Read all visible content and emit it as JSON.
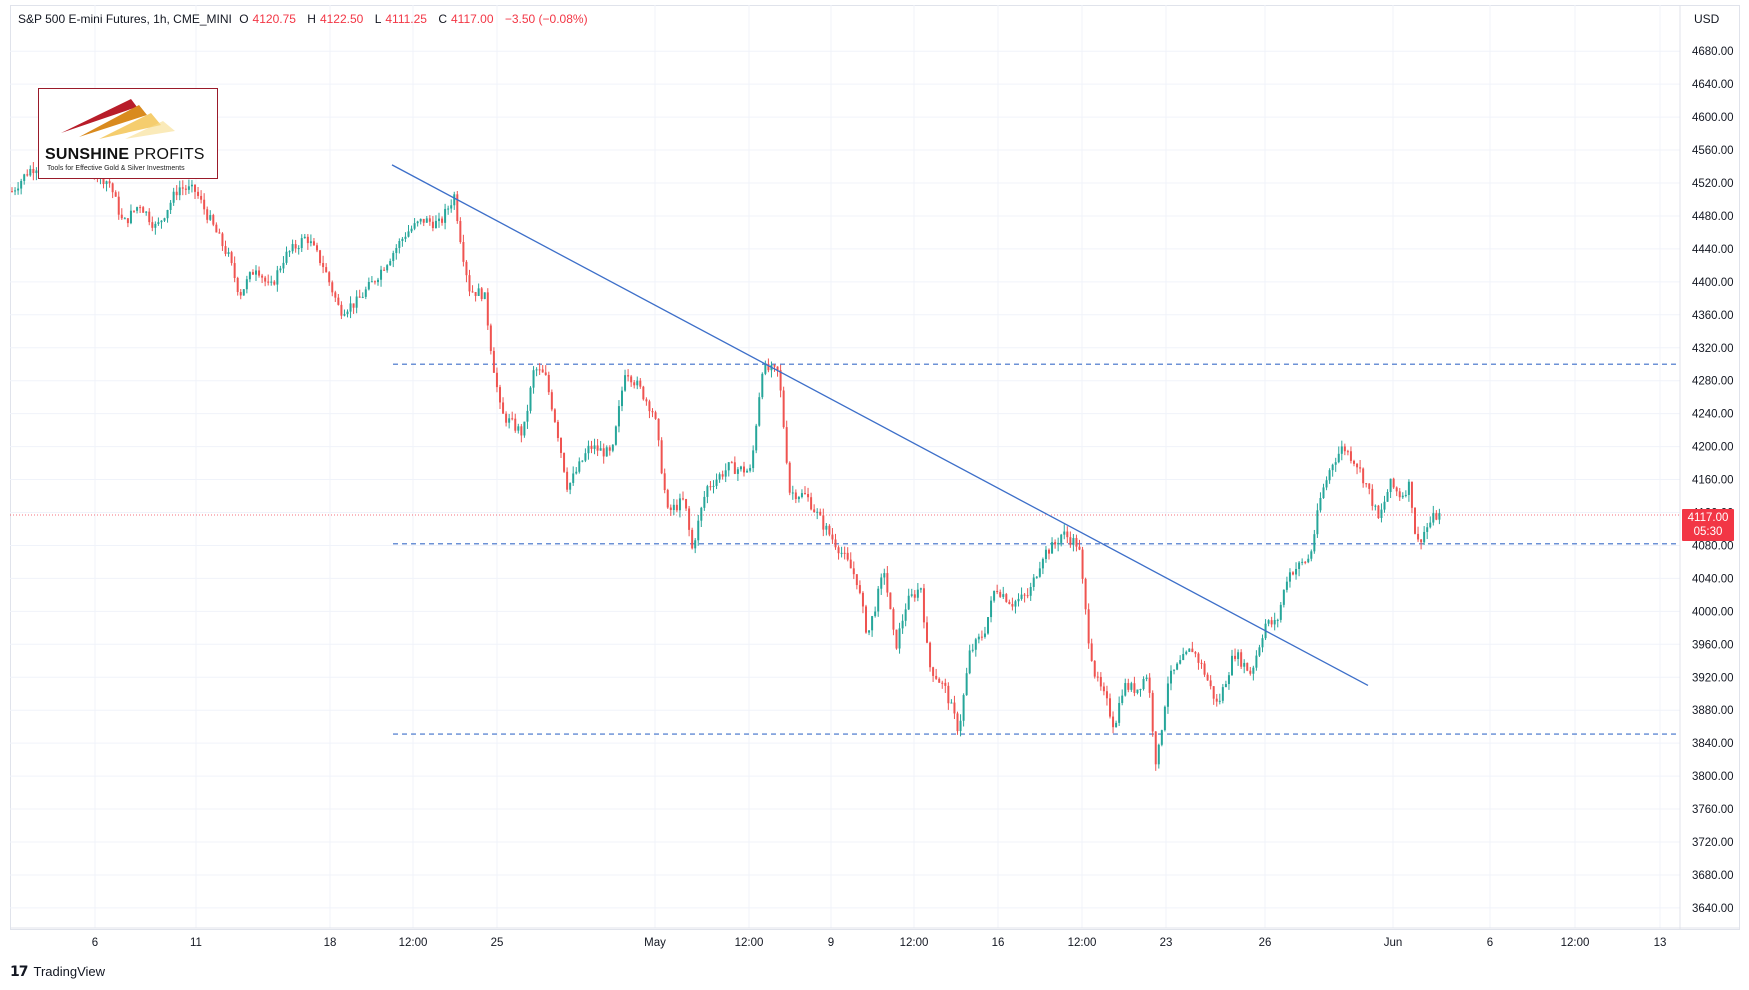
{
  "header": {
    "symbol": "S&P 500 E-mini Futures, 1h, CME_MINI",
    "open_label": "O",
    "open": "4120.75",
    "high_label": "H",
    "high": "4122.50",
    "low_label": "L",
    "low": "4111.25",
    "close_label": "C",
    "close": "4117.00",
    "change": "−3.50 (−0.08%)"
  },
  "currency": "USD",
  "last_price": {
    "value": "4117.00",
    "countdown": "05:30"
  },
  "logo": {
    "brand_bold": "SUNSHINE",
    "brand_thin": " PROFITS",
    "tagline": "Tools for Effective Gold & Silver Investments"
  },
  "footer": {
    "icon": "tradingview-icon",
    "label": "TradingView"
  },
  "colors": {
    "up": "#26a69a",
    "down": "#ef5350",
    "trendline": "#3d6fc9",
    "level": "#3d6fc9",
    "badge": "#f23645"
  },
  "chart_data": {
    "type": "candlestick",
    "y_ticks": [
      3640,
      3680,
      3720,
      3760,
      3800,
      3840,
      3880,
      3920,
      3960,
      4000,
      4040,
      4080,
      4120,
      4160,
      4200,
      4240,
      4280,
      4320,
      4360,
      4400,
      4440,
      4480,
      4520,
      4560,
      4600,
      4640,
      4680
    ],
    "y_tick_labels": [
      "3640.00",
      "3680.00",
      "3720.00",
      "3760.00",
      "3800.00",
      "3840.00",
      "3880.00",
      "3920.00",
      "3960.00",
      "4000.00",
      "4040.00",
      "4080.00",
      "4120.00",
      "4160.00",
      "4200.00",
      "4240.00",
      "4280.00",
      "4320.00",
      "4360.00",
      "4400.00",
      "4440.00",
      "4480.00",
      "4520.00",
      "4560.00",
      "4600.00",
      "4640.00",
      "4680.00"
    ],
    "ylim": [
      3620,
      4700
    ],
    "x_tick_labels": [
      "6",
      "11",
      "18",
      "12:00",
      "25",
      "May",
      "12:00",
      "9",
      "12:00",
      "16",
      "12:00",
      "23",
      "26",
      "Jun",
      "6",
      "12:00",
      "13"
    ],
    "horizontal_levels": [
      4300,
      4082,
      3851
    ],
    "trendline": {
      "from_price": 4542,
      "to_price": 3910
    },
    "price_path": [
      [
        0,
        4510
      ],
      [
        15,
        4535
      ],
      [
        40,
        4555
      ],
      [
        70,
        4538
      ],
      [
        88,
        4520
      ],
      [
        100,
        4470
      ],
      [
        115,
        4495
      ],
      [
        130,
        4465
      ],
      [
        150,
        4515
      ],
      [
        165,
        4510
      ],
      [
        180,
        4470
      ],
      [
        195,
        4430
      ],
      [
        205,
        4385
      ],
      [
        220,
        4420
      ],
      [
        232,
        4390
      ],
      [
        245,
        4430
      ],
      [
        265,
        4455
      ],
      [
        280,
        4420
      ],
      [
        295,
        4365
      ],
      [
        310,
        4375
      ],
      [
        325,
        4400
      ],
      [
        340,
        4430
      ],
      [
        355,
        4460
      ],
      [
        370,
        4475
      ],
      [
        385,
        4470
      ],
      [
        398,
        4505
      ],
      [
        405,
        4440
      ],
      [
        412,
        4390
      ],
      [
        425,
        4385
      ],
      [
        432,
        4310
      ],
      [
        440,
        4240
      ],
      [
        460,
        4215
      ],
      [
        470,
        4295
      ],
      [
        480,
        4285
      ],
      [
        490,
        4225
      ],
      [
        500,
        4150
      ],
      [
        520,
        4200
      ],
      [
        540,
        4190
      ],
      [
        552,
        4295
      ],
      [
        565,
        4270
      ],
      [
        578,
        4240
      ],
      [
        590,
        4120
      ],
      [
        605,
        4135
      ],
      [
        612,
        4075
      ],
      [
        625,
        4150
      ],
      [
        645,
        4175
      ],
      [
        665,
        4170
      ],
      [
        675,
        4295
      ],
      [
        690,
        4290
      ],
      [
        700,
        4145
      ],
      [
        715,
        4140
      ],
      [
        730,
        4105
      ],
      [
        745,
        4075
      ],
      [
        760,
        4040
      ],
      [
        770,
        3970
      ],
      [
        785,
        4050
      ],
      [
        795,
        3955
      ],
      [
        805,
        4010
      ],
      [
        818,
        4030
      ],
      [
        825,
        3935
      ],
      [
        840,
        3905
      ],
      [
        852,
        3855
      ],
      [
        862,
        3950
      ],
      [
        875,
        3975
      ],
      [
        885,
        4030
      ],
      [
        900,
        4010
      ],
      [
        915,
        4020
      ],
      [
        928,
        4070
      ],
      [
        938,
        4080
      ],
      [
        945,
        4095
      ],
      [
        960,
        4080
      ],
      [
        968,
        3975
      ],
      [
        975,
        3920
      ],
      [
        985,
        3890
      ],
      [
        992,
        3860
      ],
      [
        1000,
        3910
      ],
      [
        1012,
        3905
      ],
      [
        1022,
        3925
      ],
      [
        1030,
        3810
      ],
      [
        1040,
        3915
      ],
      [
        1050,
        3935
      ],
      [
        1062,
        3955
      ],
      [
        1072,
        3930
      ],
      [
        1085,
        3885
      ],
      [
        1100,
        3950
      ],
      [
        1115,
        3925
      ],
      [
        1128,
        3985
      ],
      [
        1138,
        3985
      ],
      [
        1148,
        4045
      ],
      [
        1158,
        4055
      ],
      [
        1168,
        4065
      ],
      [
        1178,
        4140
      ],
      [
        1188,
        4180
      ],
      [
        1198,
        4200
      ],
      [
        1210,
        4180
      ],
      [
        1220,
        4150
      ],
      [
        1230,
        4110
      ],
      [
        1240,
        4155
      ],
      [
        1250,
        4140
      ],
      [
        1258,
        4155
      ],
      [
        1264,
        4080
      ],
      [
        1270,
        4095
      ],
      [
        1280,
        4115
      ],
      [
        1286,
        4117
      ]
    ]
  }
}
